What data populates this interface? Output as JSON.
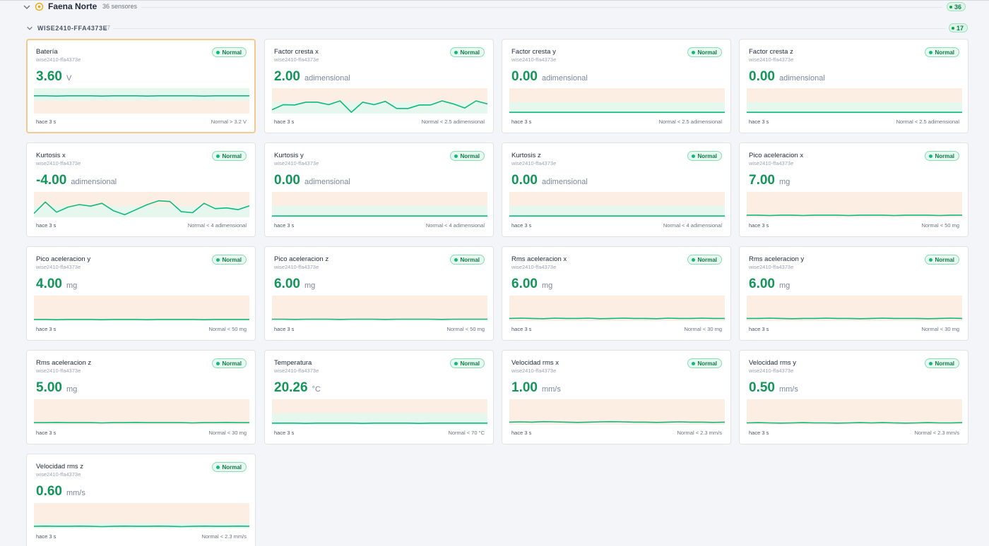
{
  "site": {
    "name": "Faena Norte",
    "sensor_count_label": "36 sensores",
    "badge": "36"
  },
  "device": {
    "name": "WISE2410-FFA4373E",
    "count_label": "17",
    "badge": "17"
  },
  "colors": {
    "accent_green": "#129659",
    "status_ok": "#10b981",
    "warning_band": "#fdeee4",
    "normal_band": "#e6f7ee",
    "site_icon": "#f0a500"
  },
  "cards": [
    {
      "name": "Batería",
      "device_id": "wise2410-ffa4373e",
      "status": "Normal",
      "value": "3.60",
      "unit": "V",
      "age": "hace 3 s",
      "threshold": "Normal > 3.2 V",
      "selected": true,
      "normal_band": "below",
      "trend": [
        0.3,
        0.3,
        0.31,
        0.3,
        0.3,
        0.3,
        0.31,
        0.3,
        0.3,
        0.3,
        0.31,
        0.3,
        0.3,
        0.3,
        0.3,
        0.31,
        0.3,
        0.3,
        0.3,
        0.3
      ]
    },
    {
      "name": "Factor cresta x",
      "device_id": "wise2410-ffa4373e",
      "status": "Normal",
      "value": "2.00",
      "unit": "adimensional",
      "age": "hace 3 s",
      "threshold": "Normal < 2.5 adimensional",
      "normal_band": "above",
      "trend": [
        0.85,
        0.65,
        0.66,
        0.55,
        0.55,
        0.65,
        0.5,
        0.95,
        0.55,
        0.65,
        0.52,
        0.8,
        0.8,
        0.66,
        0.66,
        0.5,
        0.62,
        0.78,
        0.5,
        0.62
      ]
    },
    {
      "name": "Factor cresta y",
      "device_id": "wise2410-ffa4373e",
      "status": "Normal",
      "value": "0.00",
      "unit": "adimensional",
      "age": "hace 3 s",
      "threshold": "Normal < 2.5 adimensional",
      "normal_band": "above",
      "trend": [
        0.95,
        0.95,
        0.95,
        0.95,
        0.95,
        0.95,
        0.95,
        0.95,
        0.95,
        0.95,
        0.95,
        0.95,
        0.95,
        0.95,
        0.95,
        0.95,
        0.95,
        0.95,
        0.95,
        0.95
      ]
    },
    {
      "name": "Factor cresta z",
      "device_id": "wise2410-ffa4373e",
      "status": "Normal",
      "value": "0.00",
      "unit": "adimensional",
      "age": "hace 3 s",
      "threshold": "Normal < 2.5 adimensional",
      "normal_band": "above",
      "trend": [
        0.95,
        0.95,
        0.95,
        0.95,
        0.95,
        0.95,
        0.95,
        0.95,
        0.95,
        0.95,
        0.95,
        0.95,
        0.95,
        0.95,
        0.95,
        0.95,
        0.95,
        0.95,
        0.95,
        0.95
      ]
    },
    {
      "name": "Kurtosis x",
      "device_id": "wise2410-ffa4373e",
      "status": "Normal",
      "value": "-4.00",
      "unit": "adimensional",
      "age": "hace 3 s",
      "threshold": "Normal < 4 adimensional",
      "normal_band": "above",
      "trend": [
        0.85,
        0.4,
        0.8,
        0.6,
        0.5,
        0.56,
        0.45,
        0.74,
        0.9,
        0.7,
        0.5,
        0.35,
        0.38,
        0.78,
        0.82,
        0.45,
        0.66,
        0.63,
        0.7,
        0.55
      ]
    },
    {
      "name": "Kurtosis y",
      "device_id": "wise2410-ffa4373e",
      "status": "Normal",
      "value": "0.00",
      "unit": "adimensional",
      "age": "hace 3 s",
      "threshold": "Normal < 4 adimensional",
      "normal_band": "above",
      "trend": [
        0.95,
        0.95,
        0.95,
        0.95,
        0.95,
        0.95,
        0.95,
        0.95,
        0.95,
        0.95,
        0.95,
        0.95,
        0.95,
        0.95,
        0.95,
        0.95,
        0.95,
        0.95,
        0.95,
        0.95
      ]
    },
    {
      "name": "Kurtosis z",
      "device_id": "wise2410-ffa4373e",
      "status": "Normal",
      "value": "0.00",
      "unit": "adimensional",
      "age": "hace 3 s",
      "threshold": "Normal < 4 adimensional",
      "normal_band": "above",
      "trend": [
        0.95,
        0.95,
        0.95,
        0.95,
        0.95,
        0.95,
        0.95,
        0.95,
        0.95,
        0.95,
        0.95,
        0.95,
        0.95,
        0.95,
        0.95,
        0.95,
        0.95,
        0.95,
        0.95,
        0.95
      ]
    },
    {
      "name": "Pico aceleracion x",
      "device_id": "wise2410-ffa4373e",
      "status": "Normal",
      "value": "7.00",
      "unit": "mg",
      "age": "hace 3 s",
      "threshold": "Normal < 50 mg",
      "normal_band": "none",
      "trend": [
        0.92,
        0.92,
        0.93,
        0.92,
        0.92,
        0.93,
        0.92,
        0.92,
        0.92,
        0.93,
        0.92,
        0.92,
        0.92,
        0.93,
        0.92,
        0.92,
        0.92,
        0.93,
        0.92,
        0.92
      ]
    },
    {
      "name": "Pico aceleracion y",
      "device_id": "wise2410-ffa4373e",
      "status": "Normal",
      "value": "4.00",
      "unit": "mg",
      "age": "hace 3 s",
      "threshold": "Normal < 50 mg",
      "normal_band": "none",
      "trend": [
        0.94,
        0.94,
        0.95,
        0.94,
        0.94,
        0.94,
        0.95,
        0.94,
        0.94,
        0.94,
        0.95,
        0.94,
        0.94,
        0.94,
        0.94,
        0.95,
        0.94,
        0.94,
        0.94,
        0.94
      ]
    },
    {
      "name": "Pico aceleracion z",
      "device_id": "wise2410-ffa4373e",
      "status": "Normal",
      "value": "6.00",
      "unit": "mg",
      "age": "hace 3 s",
      "threshold": "Normal < 50 mg",
      "normal_band": "none",
      "trend": [
        0.93,
        0.93,
        0.94,
        0.93,
        0.93,
        0.93,
        0.94,
        0.93,
        0.93,
        0.93,
        0.94,
        0.93,
        0.93,
        0.93,
        0.93,
        0.94,
        0.93,
        0.93,
        0.93,
        0.93
      ]
    },
    {
      "name": "Rms aceleracion x",
      "device_id": "wise2410-ffa4373e",
      "status": "Normal",
      "value": "6.00",
      "unit": "mg",
      "age": "hace 3 s",
      "threshold": "Normal < 30 mg",
      "normal_band": "none",
      "trend": [
        0.9,
        0.89,
        0.9,
        0.91,
        0.89,
        0.9,
        0.9,
        0.89,
        0.91,
        0.9,
        0.89,
        0.9,
        0.9,
        0.91,
        0.89,
        0.9,
        0.9,
        0.89,
        0.9,
        0.9
      ]
    },
    {
      "name": "Rms aceleracion y",
      "device_id": "wise2410-ffa4373e",
      "status": "Normal",
      "value": "6.00",
      "unit": "mg",
      "age": "hace 3 s",
      "threshold": "Normal < 30 mg",
      "normal_band": "none",
      "trend": [
        0.9,
        0.9,
        0.89,
        0.9,
        0.91,
        0.9,
        0.9,
        0.89,
        0.9,
        0.9,
        0.91,
        0.9,
        0.89,
        0.9,
        0.9,
        0.9,
        0.91,
        0.9,
        0.89,
        0.9
      ]
    },
    {
      "name": "Rms aceleracion z",
      "device_id": "wise2410-ffa4373e",
      "status": "Normal",
      "value": "5.00",
      "unit": "mg",
      "age": "hace 3 s",
      "threshold": "Normal < 30 mg",
      "normal_band": "none",
      "trend": [
        0.92,
        0.92,
        0.91,
        0.92,
        0.92,
        0.92,
        0.93,
        0.92,
        0.92,
        0.91,
        0.92,
        0.92,
        0.92,
        0.92,
        0.93,
        0.92,
        0.92,
        0.91,
        0.92,
        0.92
      ]
    },
    {
      "name": "Temperatura",
      "device_id": "wise2410-ffa4373e",
      "status": "Normal",
      "value": "20.26",
      "unit": "°C",
      "age": "hace 3 s",
      "threshold": "Normal < 70 °C",
      "normal_band": "above",
      "trend": [
        0.94,
        0.94,
        0.94,
        0.95,
        0.94,
        0.94,
        0.94,
        0.94,
        0.95,
        0.94,
        0.94,
        0.94,
        0.94,
        0.95,
        0.94,
        0.94,
        0.94,
        0.94,
        0.94,
        0.94
      ]
    },
    {
      "name": "Velocidad rms x",
      "device_id": "wise2410-ffa4373e",
      "status": "Normal",
      "value": "1.00",
      "unit": "mm/s",
      "age": "hace 3 s",
      "threshold": "Normal < 2.3 mm/s",
      "normal_band": "none",
      "trend": [
        0.9,
        0.89,
        0.9,
        0.88,
        0.89,
        0.9,
        0.91,
        0.9,
        0.89,
        0.88,
        0.89,
        0.9,
        0.9,
        0.91,
        0.9,
        0.89,
        0.9,
        0.9,
        0.91,
        0.9
      ]
    },
    {
      "name": "Velocidad rms y",
      "device_id": "wise2410-ffa4373e",
      "status": "Normal",
      "value": "0.50",
      "unit": "mm/s",
      "age": "hace 3 s",
      "threshold": "Normal < 2.3 mm/s",
      "normal_band": "none",
      "trend": [
        0.93,
        0.92,
        0.93,
        0.94,
        0.93,
        0.92,
        0.93,
        0.93,
        0.94,
        0.93,
        0.92,
        0.93,
        0.92,
        0.93,
        0.94,
        0.93,
        0.92,
        0.93,
        0.93,
        0.92
      ]
    },
    {
      "name": "Velocidad rms z",
      "device_id": "wise2410-ffa4373e",
      "status": "Normal",
      "value": "0.60",
      "unit": "mm/s",
      "age": "hace 3 s",
      "threshold": "Normal < 2.3 mm/s",
      "normal_band": "low",
      "trend": [
        0.92,
        0.91,
        0.92,
        0.92,
        0.91,
        0.92,
        0.93,
        0.92,
        0.91,
        0.92,
        0.92,
        0.91,
        0.92,
        0.93,
        0.92,
        0.91,
        0.92,
        0.92,
        0.91,
        0.92
      ]
    }
  ]
}
